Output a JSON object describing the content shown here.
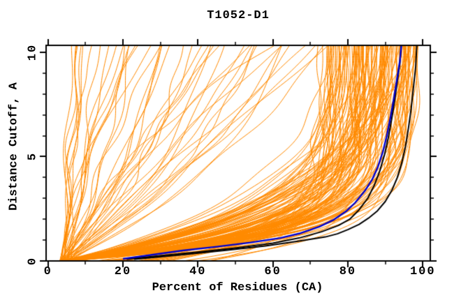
{
  "chart_data": {
    "type": "line",
    "title": "T1052-D1",
    "xlabel": "Percent of Residues (CA)",
    "ylabel": "Distance Cutoff, A",
    "xlim": [
      -0.5,
      102
    ],
    "ylim": [
      0,
      10.33
    ],
    "x_major_ticks": [
      0,
      20,
      40,
      60,
      80,
      100
    ],
    "x_minor_ticks": [
      10,
      30,
      50,
      70,
      90
    ],
    "y_major_ticks": [
      0,
      5,
      10
    ],
    "y_minor_ticks": [
      1,
      2,
      3,
      4,
      6,
      7,
      8,
      9
    ],
    "grid": false,
    "legend": null,
    "ticks_mirrored_all_sides": true,
    "frame_color": "#000000",
    "background_color": "#ffffff",
    "series": [
      {
        "name": "model-ensemble",
        "color": "#FF8A00",
        "line_width": 1,
        "procedural": true,
        "count": 175,
        "seed": 20521,
        "description": "Ensemble of ~175 predicted-model GDT curves (percent of CA residues under distance cutoff); qualities range from poor (steep left curves reaching top at 5-75%) to good (dense bundle saturating at 76-99%)"
      },
      {
        "name": "reference-model-1",
        "color": "#000000",
        "line_width": 2,
        "points": [
          [
            21,
            0.08
          ],
          [
            30,
            0.25
          ],
          [
            40,
            0.43
          ],
          [
            50,
            0.62
          ],
          [
            60,
            0.85
          ],
          [
            67,
            1.1
          ],
          [
            73,
            1.4
          ],
          [
            77.5,
            1.7
          ],
          [
            80.5,
            2.0
          ],
          [
            83,
            2.45
          ],
          [
            85.3,
            3.0
          ],
          [
            87,
            3.6
          ],
          [
            88.5,
            4.3
          ],
          [
            89.8,
            5.1
          ],
          [
            90.8,
            5.9
          ],
          [
            91.7,
            6.8
          ],
          [
            92.5,
            7.7
          ],
          [
            93.2,
            8.6
          ],
          [
            93.9,
            9.5
          ],
          [
            94.2,
            10.33
          ]
        ]
      },
      {
        "name": "reference-model-2",
        "color": "#000000",
        "line_width": 2,
        "points": [
          [
            23,
            0.08
          ],
          [
            35,
            0.28
          ],
          [
            47,
            0.5
          ],
          [
            58,
            0.72
          ],
          [
            67,
            0.95
          ],
          [
            74,
            1.15
          ],
          [
            77.2,
            1.3
          ],
          [
            80,
            1.5
          ],
          [
            83,
            1.75
          ],
          [
            85.5,
            2.05
          ],
          [
            87.9,
            2.4
          ],
          [
            90,
            2.85
          ],
          [
            91.8,
            3.4
          ],
          [
            93.2,
            4.0
          ],
          [
            94.4,
            4.7
          ],
          [
            95.4,
            5.5
          ],
          [
            96.2,
            6.4
          ],
          [
            96.9,
            7.3
          ],
          [
            97.5,
            8.3
          ],
          [
            98.1,
            9.3
          ],
          [
            98.4,
            10.33
          ]
        ]
      },
      {
        "name": "highlighted-model",
        "color": "#0000CC",
        "line_width": 2.4,
        "points": [
          [
            20,
            0.1
          ],
          [
            28,
            0.3
          ],
          [
            36,
            0.5
          ],
          [
            45,
            0.68
          ],
          [
            54,
            0.88
          ],
          [
            62,
            1.1
          ],
          [
            67.4,
            1.33
          ],
          [
            72.4,
            1.64
          ],
          [
            76,
            1.95
          ],
          [
            79.5,
            2.37
          ],
          [
            82,
            2.8
          ],
          [
            84.5,
            3.35
          ],
          [
            86.5,
            3.9
          ],
          [
            88,
            4.5
          ],
          [
            89.3,
            5.2
          ],
          [
            90.4,
            6.0
          ],
          [
            91.4,
            6.9
          ],
          [
            92.3,
            7.8
          ],
          [
            93.1,
            8.7
          ],
          [
            93.9,
            9.6
          ],
          [
            94.3,
            10.33
          ]
        ]
      }
    ]
  }
}
